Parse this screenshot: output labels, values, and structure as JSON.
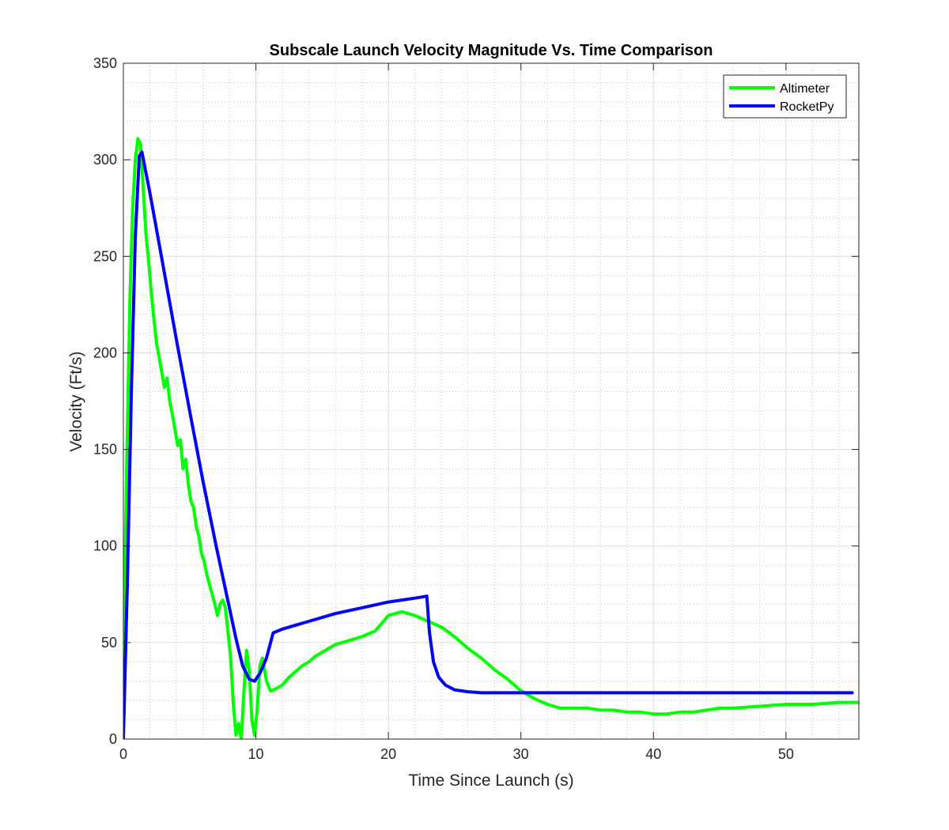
{
  "chart_data": {
    "type": "line",
    "title": "Subscale Launch Velocity Magnitude Vs. Time Comparison",
    "xlabel": "Time Since Launch (s)",
    "ylabel": "Velocity (Ft/s)",
    "xlim": [
      0,
      55.5
    ],
    "ylim": [
      0,
      350
    ],
    "xticks": [
      0,
      10,
      20,
      30,
      40,
      50
    ],
    "yticks": [
      0,
      50,
      100,
      150,
      200,
      250,
      300,
      350
    ],
    "xticks_minor_step": 2,
    "yticks_minor_step": 10,
    "grid": true,
    "minor_grid": true,
    "legend_position": "top-right",
    "series": [
      {
        "name": "Altimeter",
        "color": "#00ff00",
        "x": [
          0,
          0.1,
          0.3,
          0.5,
          0.7,
          0.9,
          1.1,
          1.3,
          1.5,
          1.7,
          1.9,
          2.1,
          2.3,
          2.5,
          2.7,
          2.9,
          3.1,
          3.3,
          3.5,
          3.7,
          3.9,
          4.1,
          4.3,
          4.5,
          4.7,
          4.9,
          5.1,
          5.3,
          5.5,
          5.7,
          5.9,
          6.1,
          6.3,
          6.5,
          6.7,
          6.9,
          7.1,
          7.3,
          7.5,
          7.7,
          7.9,
          8.1,
          8.3,
          8.5,
          8.7,
          8.9,
          9.1,
          9.3,
          9.5,
          9.7,
          9.9,
          10.1,
          10.3,
          10.5,
          10.8,
          11.1,
          11.5,
          12,
          12.5,
          13,
          13.5,
          14,
          14.5,
          15,
          15.5,
          16,
          17,
          18,
          19,
          19.5,
          20,
          21,
          22,
          23,
          24,
          25,
          26,
          27,
          28,
          29,
          30,
          31,
          32,
          33,
          34,
          35,
          36,
          37,
          38,
          39,
          40,
          41,
          42,
          43,
          44,
          45,
          46,
          48,
          50,
          52,
          54,
          55.5
        ],
        "values": [
          22,
          80,
          160,
          230,
          275,
          300,
          311,
          308,
          285,
          262,
          248,
          232,
          218,
          205,
          198,
          190,
          182,
          187,
          175,
          168,
          160,
          152,
          155,
          140,
          145,
          132,
          123,
          120,
          110,
          105,
          96,
          92,
          85,
          80,
          75,
          70,
          64,
          70,
          72,
          68,
          55,
          42,
          18,
          2,
          8,
          0,
          25,
          46,
          35,
          10,
          2,
          15,
          38,
          42,
          30,
          25,
          26,
          28,
          32,
          35,
          38,
          40,
          43,
          45,
          47,
          49,
          51,
          53,
          56,
          60,
          64,
          66,
          64,
          61,
          58,
          53,
          47,
          42,
          36,
          31,
          25,
          21,
          18,
          16,
          16,
          16,
          15,
          15,
          14,
          14,
          13,
          13,
          14,
          14,
          15,
          16,
          16,
          17,
          18,
          18,
          19,
          19
        ]
      },
      {
        "name": "RocketPy",
        "color": "#0000ff",
        "x": [
          0,
          0.3,
          0.6,
          0.9,
          1.2,
          1.4,
          1.6,
          2,
          3,
          4,
          5,
          6,
          7,
          8,
          8.5,
          9,
          9.5,
          9.9,
          10.3,
          10.8,
          11.3,
          12,
          14,
          16,
          18,
          20,
          22,
          22.9,
          23.1,
          23.4,
          23.8,
          24.3,
          25,
          26,
          27,
          28,
          30,
          35,
          40,
          45,
          50,
          55
        ],
        "values": [
          0,
          80,
          180,
          260,
          302,
          304,
          297,
          283,
          245,
          207,
          170,
          134,
          100,
          68,
          52,
          38,
          31,
          30,
          34,
          42,
          55,
          57,
          61,
          65,
          68,
          71,
          73,
          74,
          55,
          40,
          32,
          28,
          25.5,
          24.5,
          24,
          24,
          24,
          24,
          24,
          24,
          24,
          24
        ]
      }
    ]
  }
}
